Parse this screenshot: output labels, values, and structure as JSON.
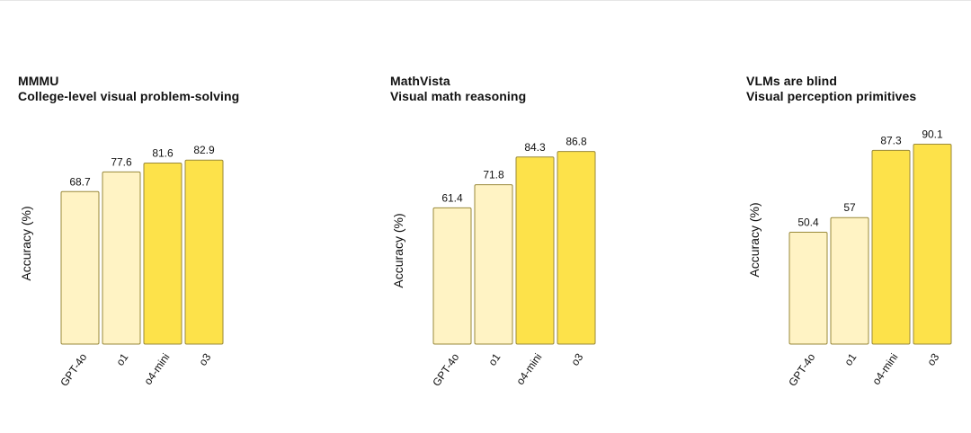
{
  "chart_data": [
    {
      "type": "bar",
      "title": "MMMU",
      "subtitle": "College-level visual problem-solving",
      "ylabel": "Accuracy (%)",
      "categories": [
        "GPT-4o",
        "o1",
        "o4-mini",
        "o3"
      ],
      "values": [
        68.7,
        77.6,
        81.6,
        82.9
      ],
      "colors": [
        "#fff3c4",
        "#fff3c4",
        "#fde24a",
        "#fde24a"
      ],
      "ylim": [
        0,
        100
      ],
      "grid": false
    },
    {
      "type": "bar",
      "title": "MathVista",
      "subtitle": "Visual math reasoning",
      "ylabel": "Accuracy (%)",
      "categories": [
        "GPT-4o",
        "o1",
        "o4-mini",
        "o3"
      ],
      "values": [
        61.4,
        71.8,
        84.3,
        86.8
      ],
      "colors": [
        "#fff3c4",
        "#fff3c4",
        "#fde24a",
        "#fde24a"
      ],
      "ylim": [
        0,
        100
      ],
      "grid": false
    },
    {
      "type": "bar",
      "title": "VLMs are blind",
      "subtitle": "Visual perception primitives",
      "ylabel": "Accuracy (%)",
      "categories": [
        "GPT-4o",
        "o1",
        "o4-mini",
        "o3"
      ],
      "values": [
        50.4,
        57,
        87.3,
        90.1
      ],
      "colors": [
        "#fff3c4",
        "#fff3c4",
        "#fde24a",
        "#fde24a"
      ],
      "ylim": [
        0,
        100
      ],
      "grid": false
    }
  ],
  "colors": {
    "bar_stroke": "#9a8a3a",
    "text": "#111111"
  }
}
